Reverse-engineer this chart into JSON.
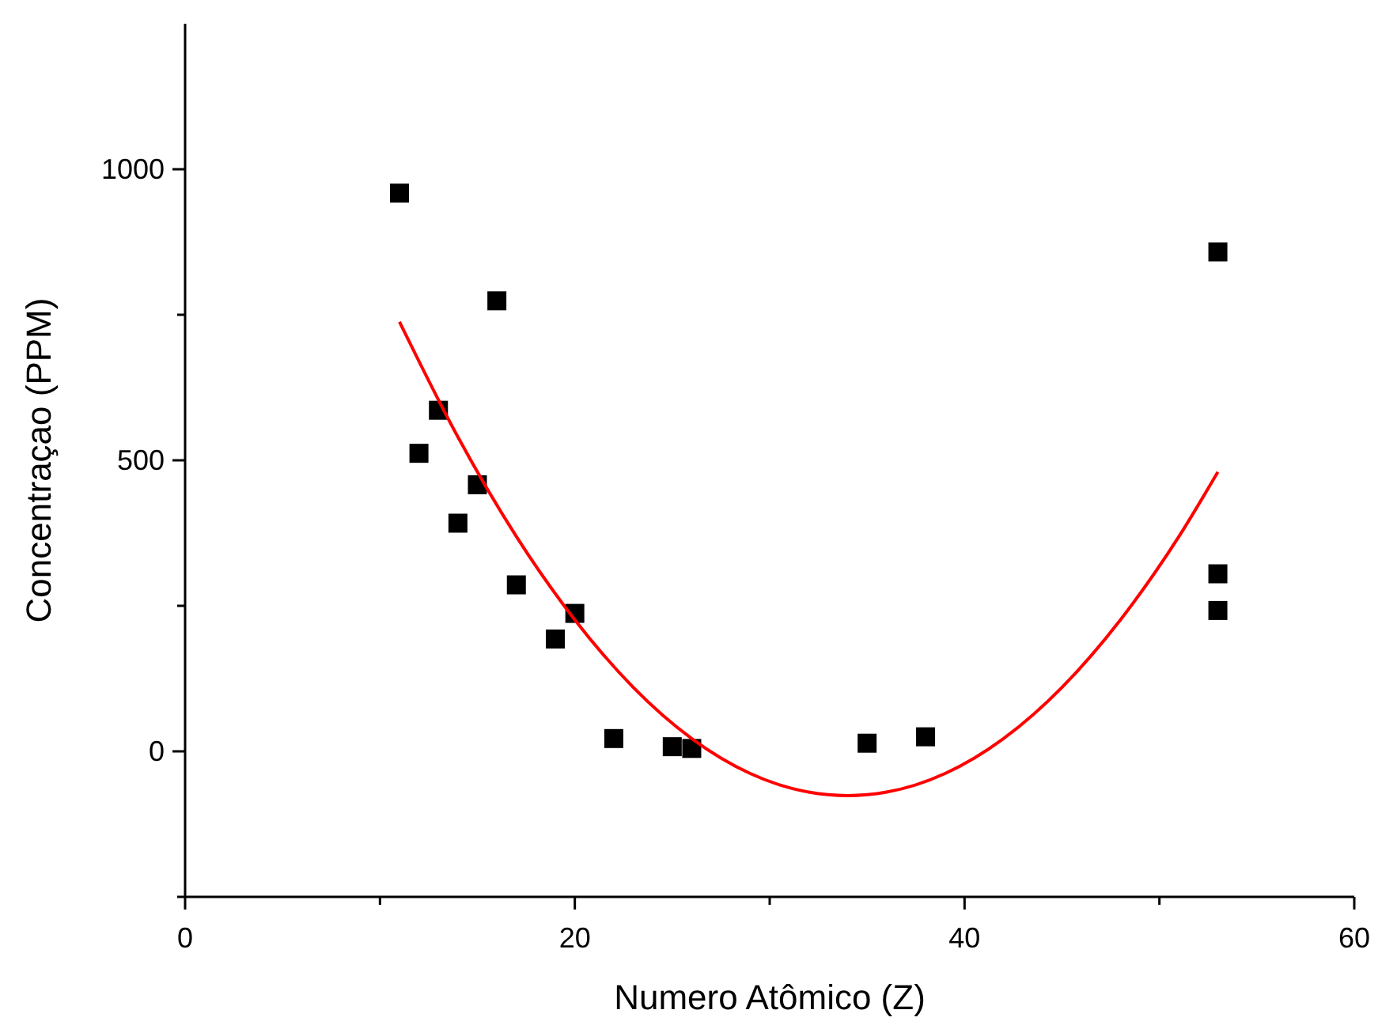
{
  "chart_data": {
    "type": "scatter",
    "xlabel": "Numero Atômico (Z)",
    "ylabel": "Concentraçao (PPM)",
    "xlim": [
      0,
      60
    ],
    "ylim": [
      -250,
      1250
    ],
    "xticks": [
      0,
      {
        "value": 10,
        "label": null
      },
      20,
      {
        "value": 30,
        "label": null
      },
      40,
      {
        "value": 50,
        "label": null
      },
      60
    ],
    "yticks": [
      {
        "value": -250,
        "label": null
      },
      0,
      {
        "value": 250,
        "label": null
      },
      500,
      {
        "value": 750,
        "label": null
      },
      1000
    ],
    "grid": false,
    "marker": "square",
    "series": [
      {
        "color": "#000000",
        "x": [
          11,
          16,
          13,
          12,
          15,
          14,
          17,
          20,
          19,
          22,
          25,
          26,
          35,
          38,
          53,
          53,
          53
        ],
        "values": [
          959,
          774,
          586,
          512,
          458,
          392,
          286,
          237,
          193,
          22,
          8,
          5,
          14,
          25,
          858,
          305,
          242
        ]
      },
      {
        "type": "line",
        "color": "#ff0000",
        "marker": "none",
        "line_style": "solid",
        "x": [
          11,
          14,
          17,
          20,
          23,
          26,
          29,
          32,
          34,
          36,
          39,
          42,
          45,
          48,
          51,
          53
        ],
        "values": [
          738,
          540,
          369,
          226,
          110,
          22,
          -38,
          -70,
          -76,
          -70,
          -38,
          22,
          110,
          226,
          369,
          480
        ]
      }
    ]
  }
}
